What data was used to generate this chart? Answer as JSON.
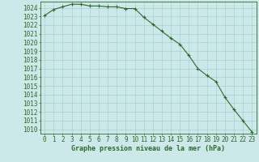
{
  "x": [
    0,
    1,
    2,
    3,
    4,
    5,
    6,
    7,
    8,
    9,
    10,
    11,
    12,
    13,
    14,
    15,
    16,
    17,
    18,
    19,
    20,
    21,
    22,
    23
  ],
  "y": [
    1023.1,
    1023.8,
    1024.1,
    1024.4,
    1024.4,
    1024.2,
    1024.2,
    1024.1,
    1024.1,
    1023.9,
    1023.9,
    1022.9,
    1022.1,
    1021.3,
    1020.5,
    1019.8,
    1018.5,
    1017.0,
    1016.2,
    1015.5,
    1013.7,
    1012.3,
    1011.0,
    1009.7
  ],
  "line_color": "#2d6a2d",
  "marker": "+",
  "marker_size": 3.5,
  "marker_linewidth": 0.8,
  "bg_color": "#cce8e8",
  "grid_color": "#99cccc",
  "ylim_min": 1009.5,
  "ylim_max": 1024.7,
  "yticks": [
    1010,
    1011,
    1012,
    1013,
    1014,
    1015,
    1016,
    1017,
    1018,
    1019,
    1020,
    1021,
    1022,
    1023,
    1024
  ],
  "xticks": [
    0,
    1,
    2,
    3,
    4,
    5,
    6,
    7,
    8,
    9,
    10,
    11,
    12,
    13,
    14,
    15,
    16,
    17,
    18,
    19,
    20,
    21,
    22,
    23
  ],
  "xlabel": "Graphe pression niveau de la mer (hPa)",
  "xlabel_color": "#2d6a2d",
  "tick_color": "#2d6a2d",
  "axis_color": "#2d6a2d",
  "label_fontsize": 5.5,
  "xlabel_fontsize": 6.0,
  "linewidth": 0.8
}
